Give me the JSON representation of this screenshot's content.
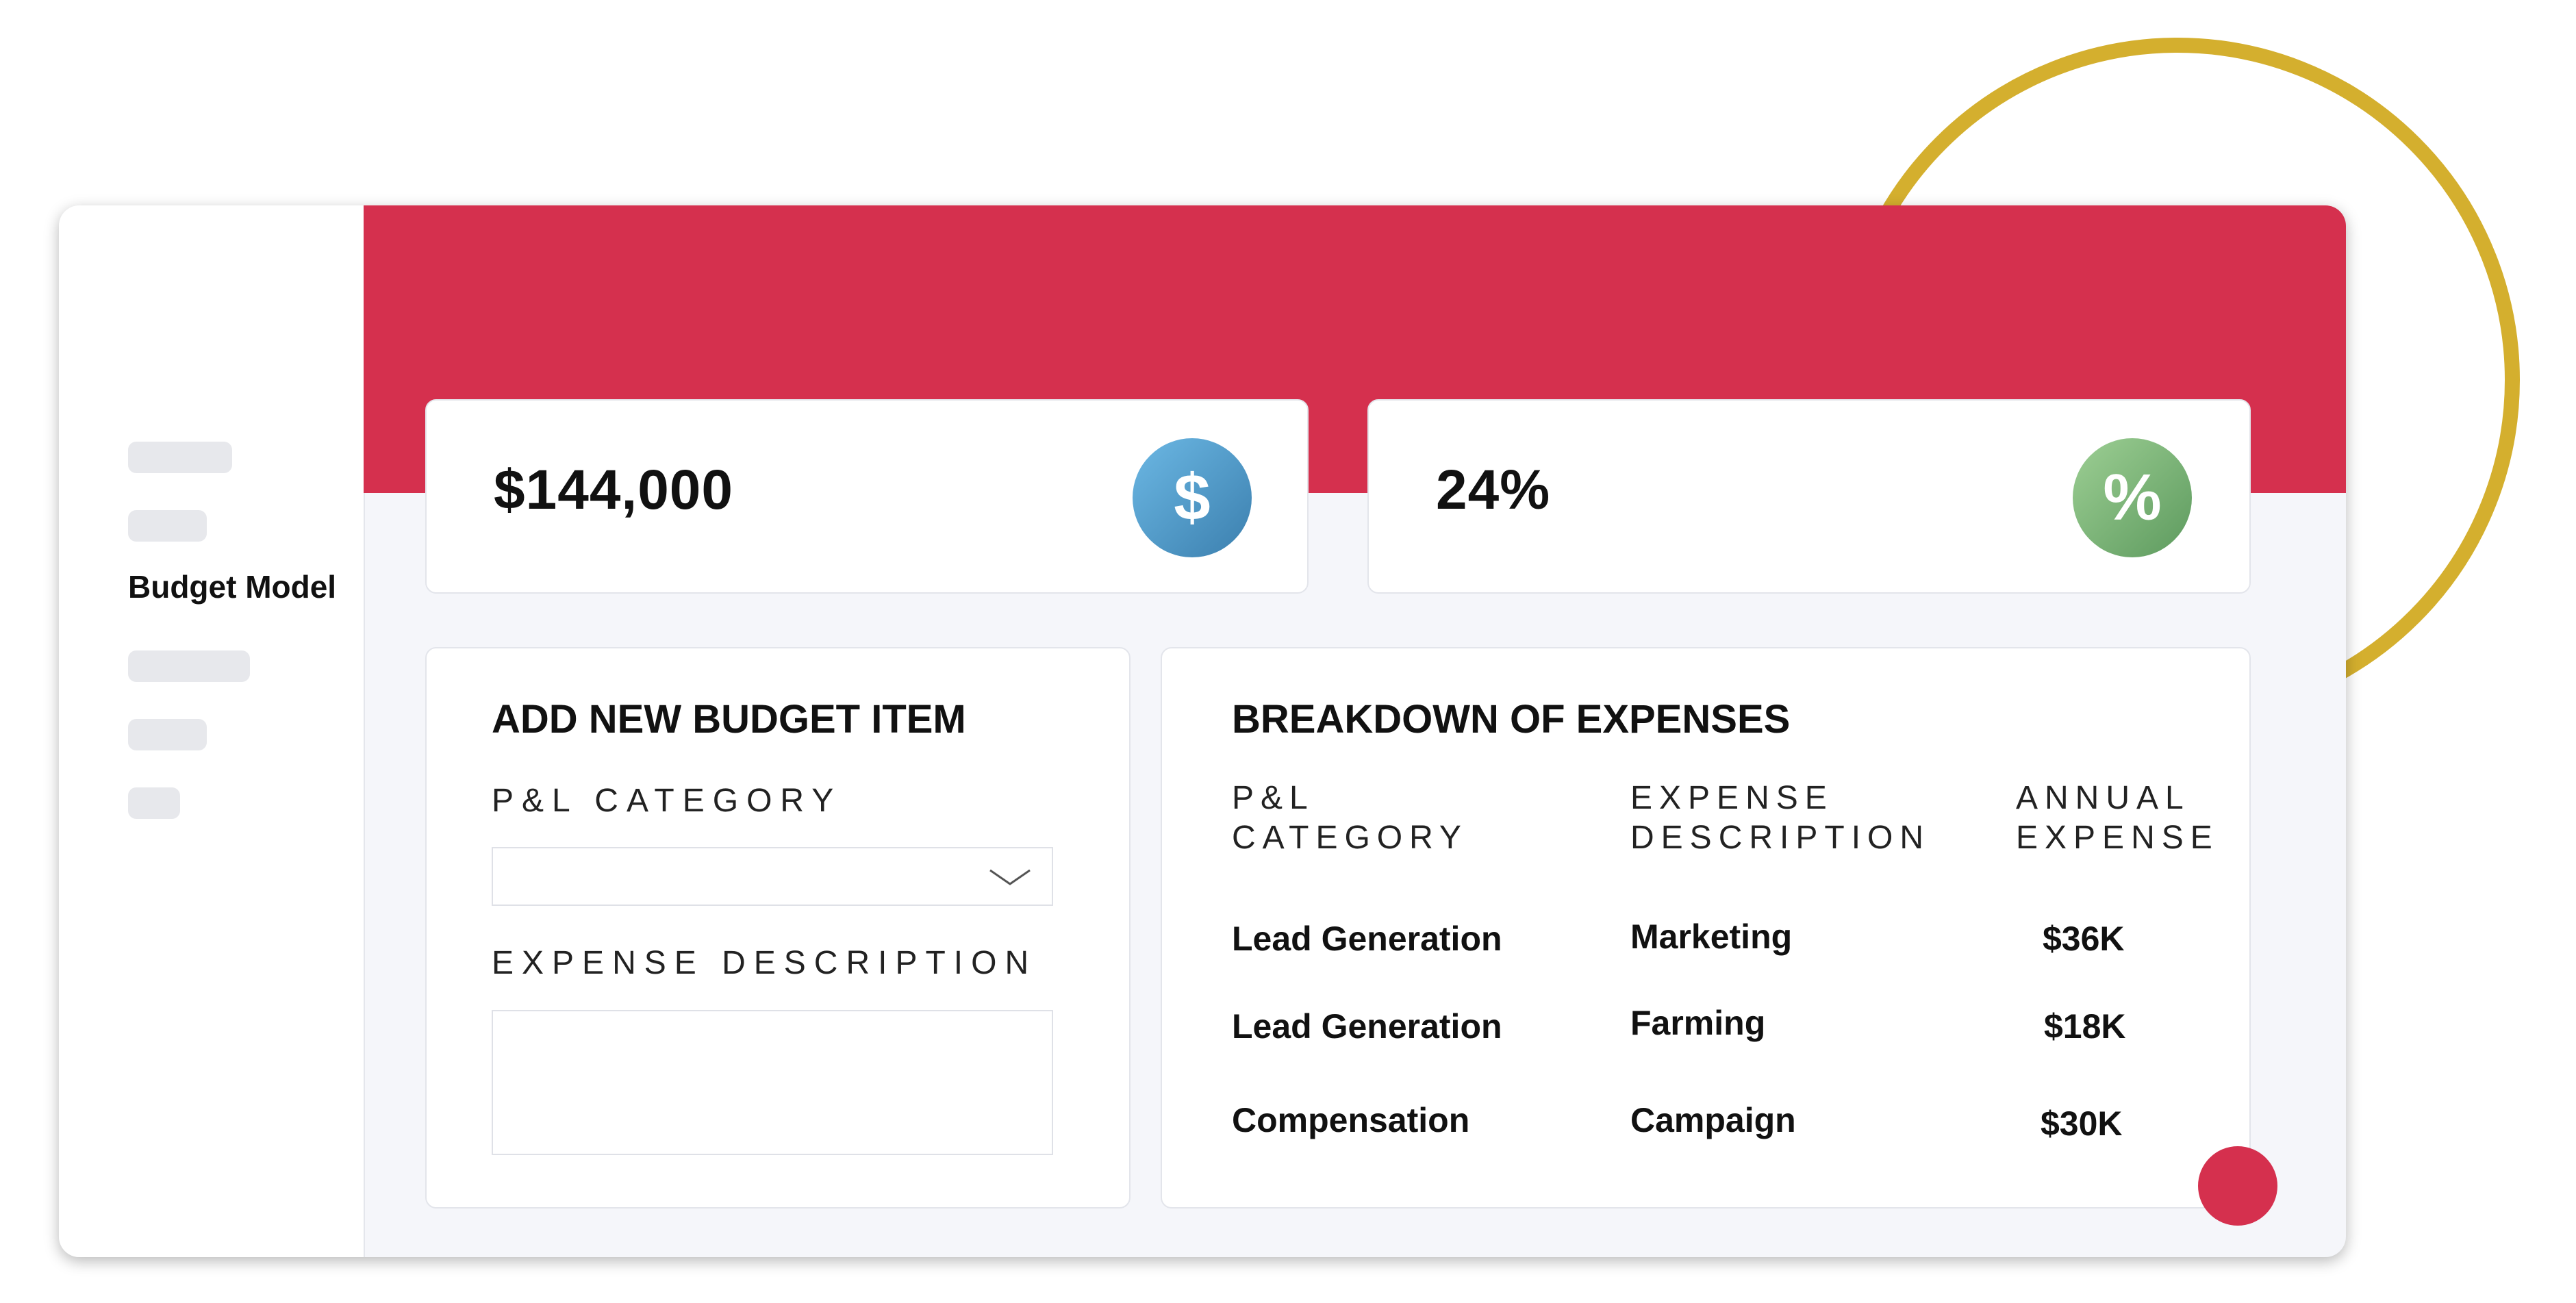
{
  "colors": {
    "accent_red": "#d5304e",
    "ring_gold": "#d4af2e",
    "dollar_icon_blue": "#4a90c2",
    "percent_icon_green": "#79b577"
  },
  "sidebar": {
    "active_item_label": "Budget Model"
  },
  "stats": {
    "total": {
      "value": "$144,000",
      "icon_symbol": "$",
      "icon": "dollar-icon"
    },
    "rate": {
      "value": "24%",
      "icon_symbol": "%",
      "icon": "percent-icon"
    }
  },
  "add_item": {
    "title": "ADD NEW BUDGET ITEM",
    "category_label": "P&L CATEGORY",
    "category_value": "",
    "description_label": "EXPENSE DESCRIPTION",
    "description_value": ""
  },
  "breakdown": {
    "title": "BREAKDOWN OF EXPENSES",
    "headers": {
      "category": [
        "P&L",
        "CATEGORY"
      ],
      "description": [
        "EXPENSE",
        "DESCRIPTION"
      ],
      "annual": [
        "ANNUAL",
        "EXPENSE"
      ]
    },
    "rows": [
      {
        "category": "Lead Generation",
        "description": "Marketing",
        "annual": "$36K"
      },
      {
        "category": "Lead Generation",
        "description": "Farming",
        "annual": "$18K"
      },
      {
        "category": "Compensation",
        "description": "Campaign",
        "annual": "$30K"
      }
    ]
  }
}
